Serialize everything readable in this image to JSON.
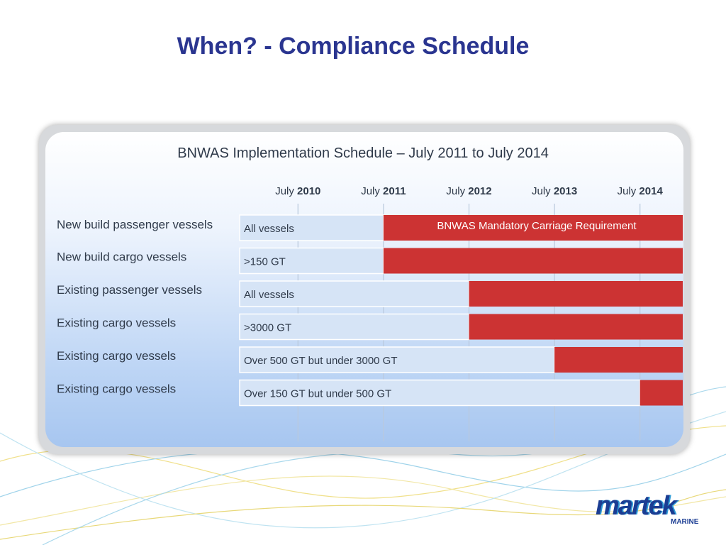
{
  "slide": {
    "title": "When? - Compliance Schedule"
  },
  "logo": {
    "wordmark": "martek",
    "subtext": "MARINE"
  },
  "chart_data": {
    "type": "gantt",
    "title": "BNWAS  Implementation Schedule – July 2011 to July 2014",
    "columns": [
      {
        "prefix": "July",
        "year": "2010"
      },
      {
        "prefix": "July",
        "year": "2011"
      },
      {
        "prefix": "July",
        "year": "2012"
      },
      {
        "prefix": "July",
        "year": "2013"
      },
      {
        "prefix": "July",
        "year": "2014"
      }
    ],
    "x_range": [
      2009.5,
      2014.5
    ],
    "bar_label": "BNWAS Mandatory Carriage Requirement",
    "colors": {
      "requirement_bar": "#cc3333",
      "pre_period": "#d6e4f6",
      "title_text": "#2a3590"
    },
    "rows": [
      {
        "category": "New build passenger vessels",
        "scope": "All vessels",
        "start": 2011,
        "end": 2014.5,
        "show_bar_label": true
      },
      {
        "category": "New build cargo vessels",
        "scope": ">150 GT",
        "start": 2011,
        "end": 2014.5,
        "show_bar_label": false
      },
      {
        "category": "Existing passenger vessels",
        "scope": "All vessels",
        "start": 2012,
        "end": 2014.5,
        "show_bar_label": false
      },
      {
        "category": "Existing cargo vessels",
        "scope": ">3000 GT",
        "start": 2012,
        "end": 2014.5,
        "show_bar_label": false
      },
      {
        "category": "Existing cargo vessels",
        "scope": "Over 500 GT but under 3000 GT",
        "start": 2013,
        "end": 2014.5,
        "show_bar_label": false
      },
      {
        "category": "Existing cargo vessels",
        "scope": "Over 150 GT but under 500 GT",
        "start": 2014,
        "end": 2014.5,
        "show_bar_label": false
      }
    ]
  }
}
